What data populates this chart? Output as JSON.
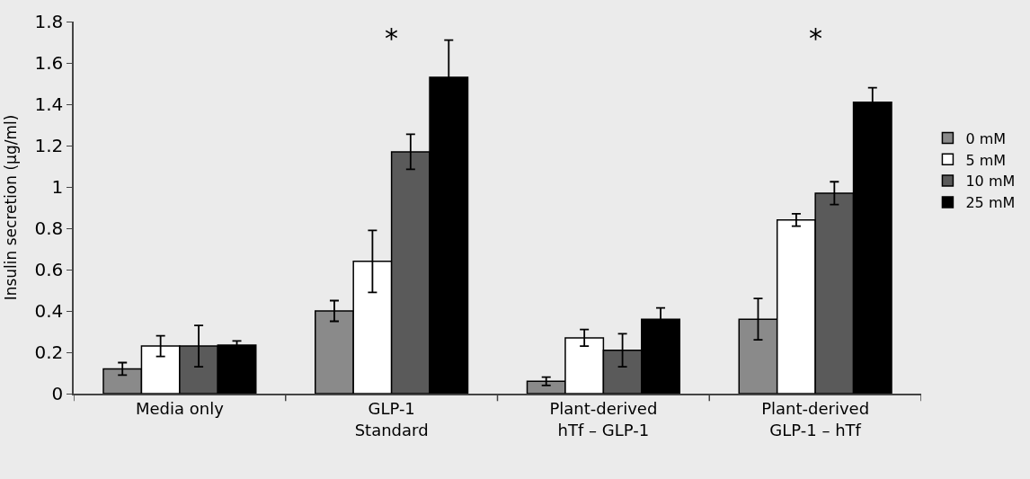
{
  "chart_data": {
    "type": "bar",
    "ylabel": "Insulin secretion (µg/ml)",
    "categories": [
      "Media only",
      "GLP-1\nStandard",
      "Plant-derived\nhTf – GLP-1",
      "Plant-derived\nGLP-1 – hTf"
    ],
    "series": [
      {
        "name": "0 mM",
        "color": "#8a8a8a",
        "values": [
          0.12,
          0.4,
          0.06,
          0.36
        ],
        "errors": [
          0.03,
          0.05,
          0.02,
          0.1
        ]
      },
      {
        "name": "5 mM",
        "color": "#ffffff",
        "values": [
          0.23,
          0.64,
          0.27,
          0.84
        ],
        "errors": [
          0.05,
          0.15,
          0.04,
          0.03
        ]
      },
      {
        "name": "10 mM",
        "color": "#5a5a5a",
        "values": [
          0.23,
          1.17,
          0.21,
          0.97
        ],
        "errors": [
          0.1,
          0.085,
          0.08,
          0.055
        ]
      },
      {
        "name": "25 mM",
        "color": "#000000",
        "values": [
          0.235,
          1.53,
          0.36,
          1.41
        ],
        "errors": [
          0.02,
          0.18,
          0.055,
          0.07
        ]
      }
    ],
    "annotations": [
      "*",
      "*"
    ],
    "ylim": [
      0,
      1.8
    ],
    "yticks": [
      0,
      0.2,
      0.4,
      0.6,
      0.8,
      1,
      1.2,
      1.4,
      1.6,
      1.8
    ],
    "grid": false,
    "legend": "right"
  }
}
